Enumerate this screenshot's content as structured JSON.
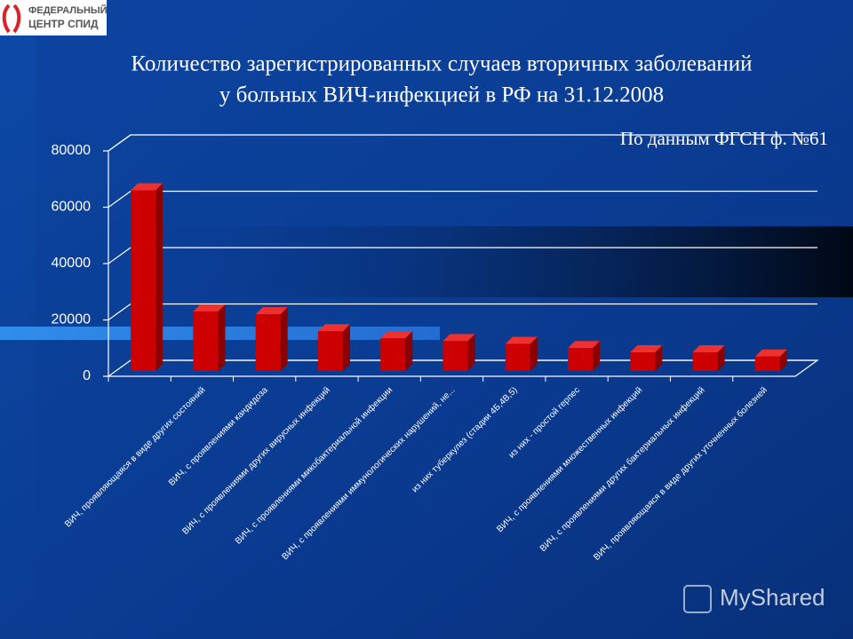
{
  "logo": {
    "lines": [
      "ФЕДЕРАЛЬНЫЙ",
      "ЦЕНТР СПИД"
    ]
  },
  "watermark": "MyShared",
  "chart_data": {
    "type": "bar",
    "title": [
      "Количество зарегистрированных случаев вторичных заболеваний",
      "у больных ВИЧ-инфекцией в РФ на 31.12.2008"
    ],
    "annotation": "По данным ФГСН ф. №61",
    "categories": [
      null,
      "ВИЧ, проявляющаяся в виде других состояний",
      "ВИЧ, с проявлениями кандидоза",
      "ВИЧ, с проявлениями других вирусных инфекций",
      "ВИЧ, с проявлениями микобактериальной инфекции",
      "ВИЧ, с проявлениями иммунологических нарушений, не...",
      "из них туберкулез (стадии 4Б,4В,5)",
      "из них - простой герпес",
      "ВИЧ, с проявлениями множественных инфекций",
      "ВИЧ, с проявлениями других бактериальных инфекций",
      "ВИЧ, проявляющаяся в виде других уточненных болезней"
    ],
    "values": [
      66000,
      23000,
      22000,
      16000,
      13500,
      12500,
      11500,
      10000,
      8500,
      8500,
      7000
    ],
    "color": "#cc0000",
    "ylim": [
      0,
      80000
    ],
    "yticks": [
      0,
      20000,
      40000,
      60000,
      80000
    ],
    "grid": true
  }
}
